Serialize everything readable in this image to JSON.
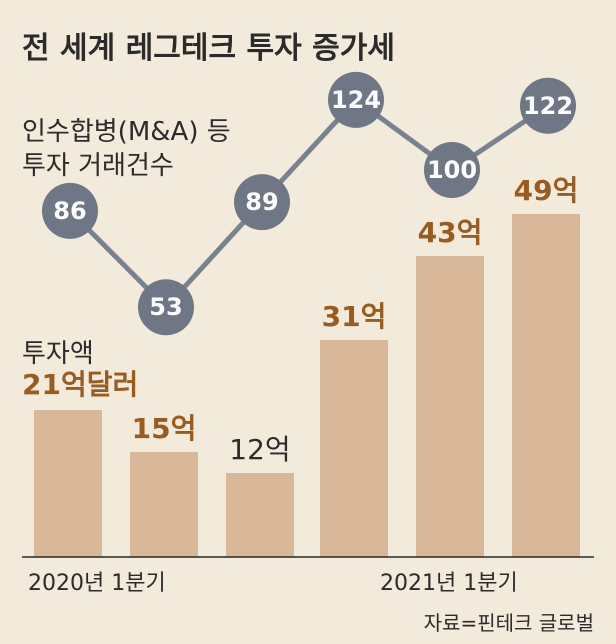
{
  "chart_data": {
    "type": "bar",
    "title": "전 세계 레그테크 투자 증가세",
    "categories": [
      "2020년 1분기",
      "",
      "",
      "2021년 1분기",
      "",
      ""
    ],
    "bar_series": {
      "name": "투자액",
      "unit_label": "21억달러",
      "values": [
        21,
        15,
        12,
        31,
        43,
        49
      ],
      "labels": [
        "21억달러",
        "15억",
        "12억",
        "31억",
        "43억",
        "49억"
      ]
    },
    "line_series": {
      "name_lines": [
        "인수합병(M&A) 등",
        "투자 거래건수"
      ],
      "values": [
        86,
        53,
        89,
        124,
        100,
        122
      ]
    },
    "source": "자료=핀테크 글로벌",
    "colors": {
      "background": "#f2eadb",
      "bar": "#d8b899",
      "line": "#7a8290",
      "dot": "#6f7786",
      "bar_label": "#9a5b1f"
    }
  }
}
